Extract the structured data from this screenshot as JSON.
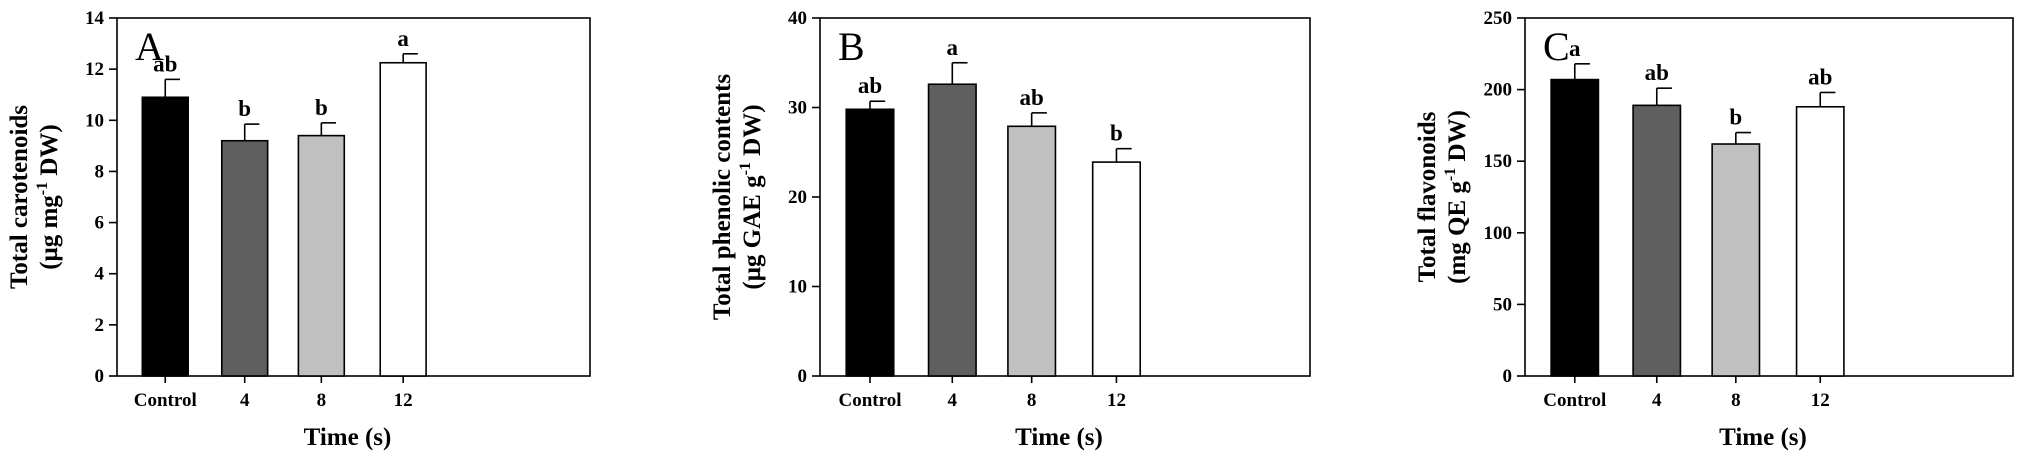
{
  "chart_data": [
    {
      "type": "bar",
      "panel_label": "A",
      "categories": [
        "Control",
        "4",
        "8",
        "12"
      ],
      "values": [
        10.9,
        9.2,
        9.4,
        12.25
      ],
      "errors": [
        0.7,
        0.65,
        0.5,
        0.35
      ],
      "letters": [
        "ab",
        "b",
        "b",
        "a"
      ],
      "bar_colors": [
        "#000000",
        "#5f5f5f",
        "#c0c0c0",
        "#ffffff"
      ],
      "ylim": [
        0,
        14
      ],
      "yticks": [
        0,
        2,
        4,
        6,
        8,
        10,
        12,
        14
      ],
      "ylabel_line1": "Total carotenoids",
      "ylabel_line2_pre": "(μg mg",
      "ylabel_line2_sup": "-1",
      "ylabel_line2_post": " DW)",
      "xlabel": "Time (s)"
    },
    {
      "type": "bar",
      "panel_label": "B",
      "categories": [
        "Control",
        "4",
        "8",
        "12"
      ],
      "values": [
        29.8,
        32.6,
        27.9,
        23.9
      ],
      "errors": [
        0.9,
        2.4,
        1.5,
        1.5
      ],
      "letters": [
        "ab",
        "a",
        "ab",
        "b"
      ],
      "bar_colors": [
        "#000000",
        "#5f5f5f",
        "#c0c0c0",
        "#ffffff"
      ],
      "ylim": [
        0,
        40
      ],
      "yticks": [
        0,
        10,
        20,
        30,
        40
      ],
      "ylabel_line1": "Total phenolic contents",
      "ylabel_line2_pre": "(μg GAE g",
      "ylabel_line2_sup": "-1",
      "ylabel_line2_post": " DW)",
      "xlabel": "Time (s)"
    },
    {
      "type": "bar",
      "panel_label": "C",
      "categories": [
        "Control",
        "4",
        "8",
        "12"
      ],
      "values": [
        207,
        189,
        162,
        188
      ],
      "errors": [
        11,
        12,
        8,
        10
      ],
      "letters": [
        "a",
        "ab",
        "b",
        "ab"
      ],
      "bar_colors": [
        "#000000",
        "#5f5f5f",
        "#c0c0c0",
        "#ffffff"
      ],
      "ylim": [
        0,
        250
      ],
      "yticks": [
        0,
        50,
        100,
        150,
        200,
        250
      ],
      "ylabel_line1": "Total flavonoids",
      "ylabel_line2_pre": "(mg QE g",
      "ylabel_line2_sup": "-1",
      "ylabel_line2_post": " DW)",
      "xlabel": "Time (s)"
    }
  ]
}
